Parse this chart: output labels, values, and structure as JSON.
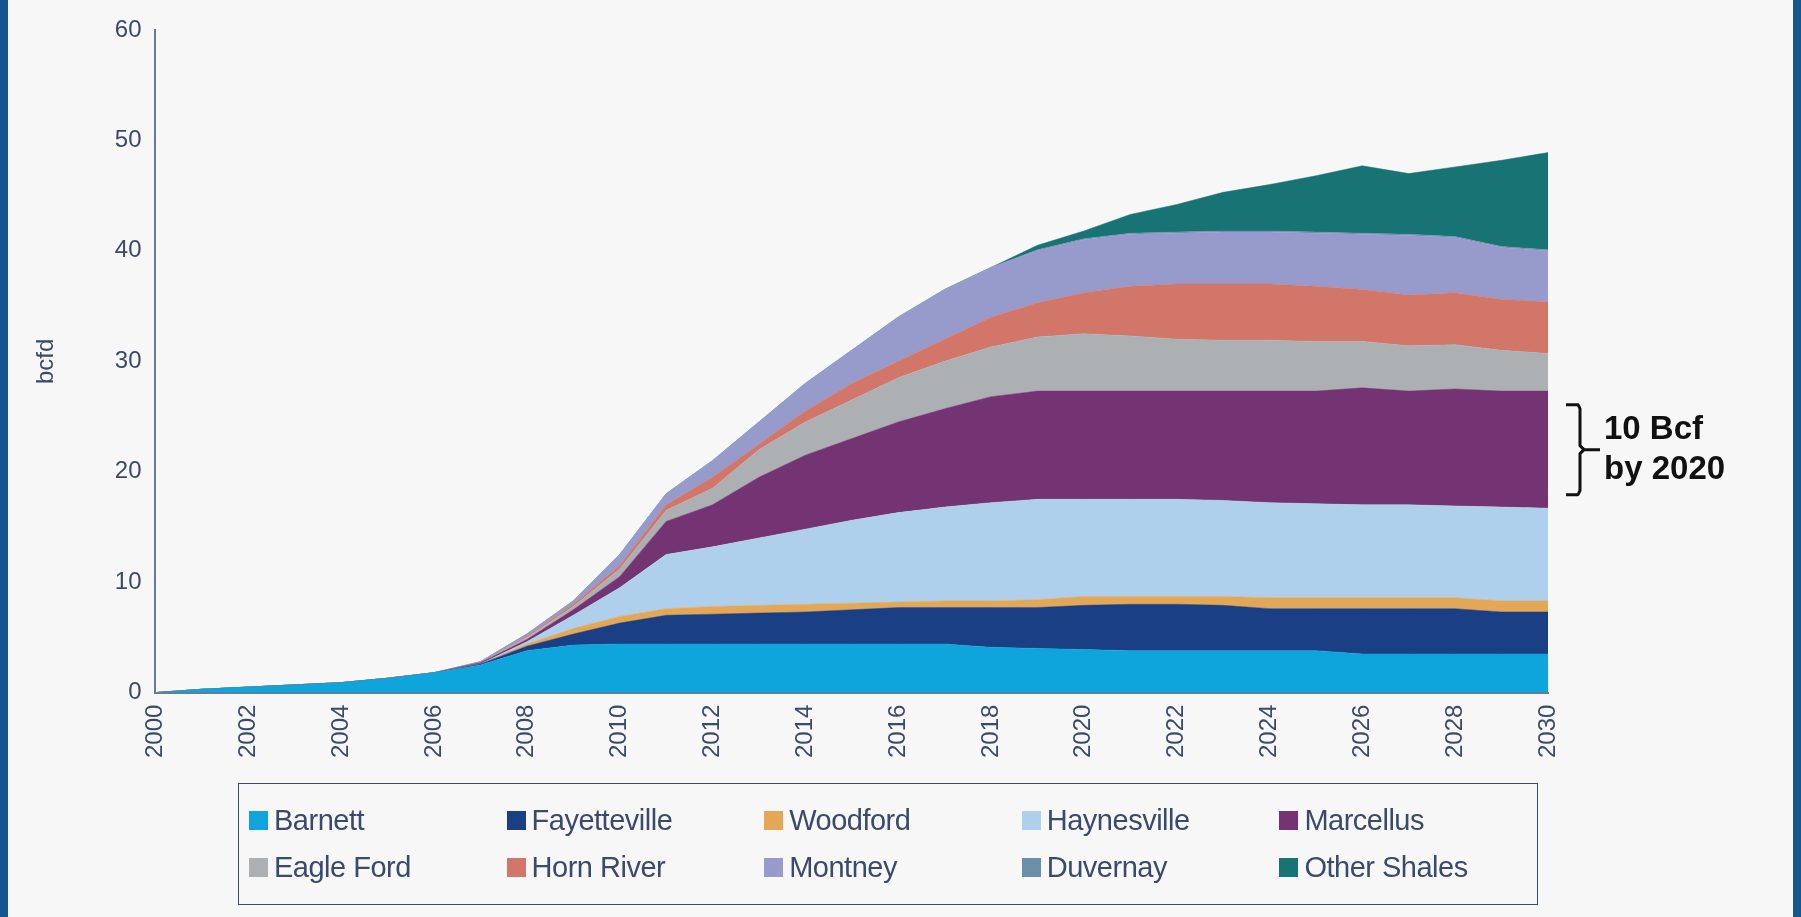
{
  "chart_data": {
    "type": "area",
    "stacked": true,
    "ylabel": "bcfd",
    "x": [
      2000,
      2001,
      2002,
      2003,
      2004,
      2005,
      2006,
      2007,
      2008,
      2009,
      2010,
      2011,
      2012,
      2013,
      2014,
      2015,
      2016,
      2017,
      2018,
      2019,
      2020,
      2021,
      2022,
      2023,
      2024,
      2025,
      2026,
      2027,
      2028,
      2029,
      2030
    ],
    "xlim": [
      2000,
      2030
    ],
    "xticks": [
      2000,
      2002,
      2004,
      2006,
      2008,
      2010,
      2012,
      2014,
      2016,
      2018,
      2020,
      2022,
      2024,
      2026,
      2028,
      2030
    ],
    "ylim": [
      0,
      60
    ],
    "yticks": [
      0,
      10,
      20,
      30,
      40,
      50,
      60
    ],
    "grid": false,
    "legend": "bottom",
    "series": [
      {
        "name": "Barnett",
        "color": "#0ea5dc",
        "values": [
          0,
          0.3,
          0.5,
          0.7,
          0.9,
          1.3,
          1.8,
          2.5,
          3.8,
          4.3,
          4.4,
          4.4,
          4.4,
          4.4,
          4.4,
          4.4,
          4.4,
          4.4,
          4.1,
          4.0,
          3.9,
          3.8,
          3.8,
          3.8,
          3.8,
          3.8,
          3.5,
          3.5,
          3.5,
          3.5,
          3.5
        ]
      },
      {
        "name": "Fayetteville",
        "color": "#1b3f84",
        "values": [
          0,
          0,
          0,
          0,
          0,
          0,
          0,
          0.1,
          0.4,
          1.0,
          1.9,
          2.6,
          2.7,
          2.8,
          2.9,
          3.1,
          3.3,
          3.3,
          3.6,
          3.7,
          4.0,
          4.2,
          4.2,
          4.1,
          3.8,
          3.8,
          4.1,
          4.1,
          4.1,
          3.8,
          3.8
        ]
      },
      {
        "name": "Woodford",
        "color": "#e3a857",
        "values": [
          0,
          0,
          0,
          0,
          0,
          0,
          0,
          0,
          0.2,
          0.5,
          0.6,
          0.6,
          0.7,
          0.7,
          0.7,
          0.6,
          0.5,
          0.6,
          0.6,
          0.7,
          0.8,
          0.7,
          0.7,
          0.8,
          1.0,
          1.0,
          1.0,
          1.0,
          1.0,
          1.0,
          1.0
        ]
      },
      {
        "name": "Haynesville",
        "color": "#aed0ec",
        "values": [
          0,
          0,
          0,
          0,
          0,
          0,
          0,
          0,
          0.2,
          1.2,
          2.6,
          4.9,
          5.4,
          6.1,
          6.8,
          7.5,
          8.1,
          8.5,
          8.9,
          9.1,
          8.8,
          8.8,
          8.8,
          8.7,
          8.6,
          8.5,
          8.4,
          8.4,
          8.3,
          8.5,
          8.4
        ]
      },
      {
        "name": "Marcellus",
        "color": "#743372",
        "values": [
          0,
          0,
          0,
          0,
          0,
          0,
          0,
          0.1,
          0.2,
          0.5,
          1.0,
          3.0,
          3.8,
          5.5,
          6.7,
          7.4,
          8.2,
          8.9,
          9.6,
          9.8,
          9.8,
          9.8,
          9.8,
          9.9,
          10.1,
          10.2,
          10.6,
          10.3,
          10.6,
          10.5,
          10.6
        ]
      },
      {
        "name": "Eagle Ford",
        "color": "#adb0b2",
        "values": [
          0,
          0,
          0,
          0,
          0,
          0,
          0,
          0,
          0.2,
          0.3,
          0.7,
          1.0,
          1.5,
          2.5,
          3.0,
          3.5,
          4.0,
          4.3,
          4.5,
          4.9,
          5.2,
          5.0,
          4.7,
          4.6,
          4.6,
          4.5,
          4.2,
          4.1,
          4.0,
          3.7,
          3.4
        ]
      },
      {
        "name": "Horn River",
        "color": "#d2766a",
        "values": [
          0,
          0,
          0,
          0,
          0,
          0,
          0,
          0,
          0.1,
          0.2,
          0.3,
          0.5,
          1.0,
          0.5,
          1.0,
          1.5,
          1.5,
          2.0,
          2.7,
          3.1,
          3.7,
          4.5,
          5.0,
          5.1,
          5.1,
          5.0,
          4.7,
          4.6,
          4.7,
          4.6,
          4.7
        ]
      },
      {
        "name": "Montney",
        "color": "#979bcc",
        "values": [
          0,
          0,
          0,
          0,
          0,
          0,
          0,
          0.1,
          0.2,
          0.3,
          1.0,
          1.0,
          1.5,
          2.0,
          2.5,
          3.0,
          4.0,
          4.5,
          4.5,
          4.7,
          4.8,
          4.7,
          4.6,
          4.7,
          4.7,
          4.8,
          5.0,
          5.4,
          5.0,
          4.7,
          4.6
        ]
      },
      {
        "name": "Duvernay",
        "color": "#6a8fa6",
        "values": [
          0,
          0,
          0,
          0,
          0,
          0,
          0,
          0,
          0,
          0,
          0,
          0,
          0,
          0,
          0,
          0,
          0,
          0,
          0,
          0.1,
          0.1,
          0.1,
          0.1,
          0.1,
          0.1,
          0.1,
          0.1,
          0.1,
          0.1,
          0.1,
          0.1
        ]
      },
      {
        "name": "Other Shales",
        "color": "#187474",
        "values": [
          0,
          0,
          0,
          0,
          0,
          0,
          0,
          0,
          0,
          0,
          0,
          0,
          0,
          0,
          0,
          0,
          0,
          0,
          0,
          0.4,
          0.7,
          1.7,
          2.5,
          3.5,
          4.2,
          5.1,
          6.1,
          5.5,
          6.3,
          7.8,
          8.8
        ]
      }
    ],
    "annotations": [
      {
        "text": "10 Bcf\nby 2020",
        "x": 2030,
        "y": 22
      }
    ]
  }
}
